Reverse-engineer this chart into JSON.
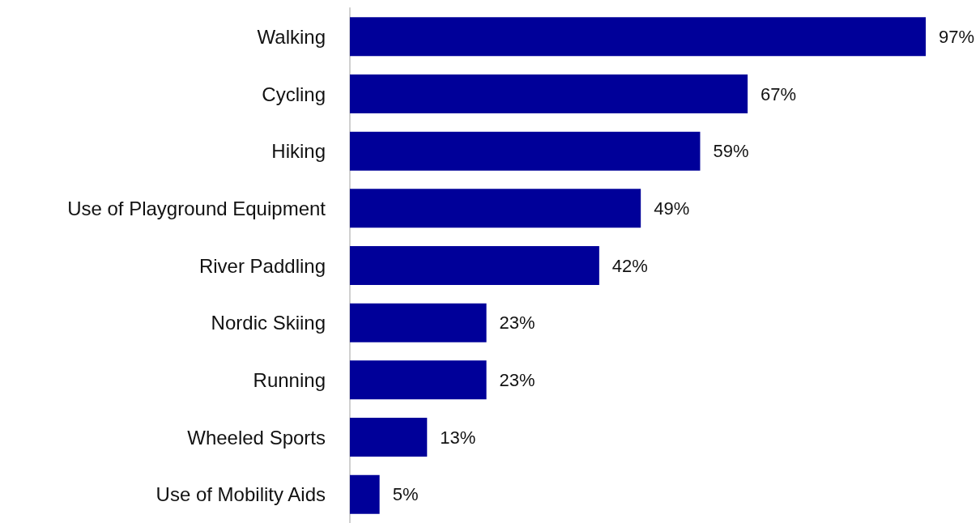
{
  "chart_data": {
    "type": "bar",
    "orientation": "horizontal",
    "categories": [
      "Walking",
      "Cycling",
      "Hiking",
      "Use of Playground Equipment",
      "River Paddling",
      "Nordic Skiing",
      "Running",
      "Wheeled Sports",
      "Use of Mobility Aids"
    ],
    "values": [
      97,
      67,
      59,
      49,
      42,
      23,
      23,
      13,
      5
    ],
    "value_labels": [
      "97%",
      "67%",
      "59%",
      "49%",
      "42%",
      "23%",
      "23%",
      "13%",
      "5%"
    ],
    "color": "#000099"
  }
}
